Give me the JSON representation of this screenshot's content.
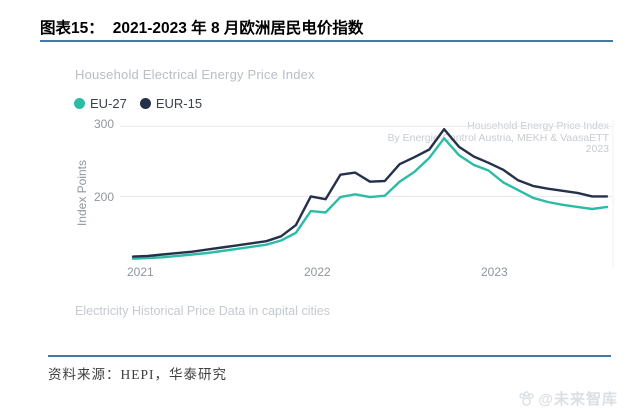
{
  "header": {
    "label": "图表15：",
    "title": "2021-2023 年 8 月欧洲居民电价指数"
  },
  "footer": {
    "source": "资料来源：HEPI，华泰研究",
    "watermark": "@未来智库"
  },
  "chart_data": {
    "type": "line",
    "title": "Household Electrical Energy Price Index",
    "ylabel": "Index Points",
    "xlabel": "",
    "y_ticks": [
      "300",
      "200"
    ],
    "ylim": [
      105,
      310
    ],
    "x_tick_labels": [
      "2021",
      "2022",
      "2023"
    ],
    "grid": "horizontal",
    "legend_position": "top-left",
    "annotation": [
      "Household Energy Price Index",
      "By Energie-Control Austria, MEKH & VaasaETT",
      "2023"
    ],
    "footnote": "Electricity Historical Price Data in capital cities",
    "categories": [
      "2021-01",
      "2021-02",
      "2021-03",
      "2021-04",
      "2021-05",
      "2021-06",
      "2021-07",
      "2021-08",
      "2021-09",
      "2021-10",
      "2021-11",
      "2021-12",
      "2022-01",
      "2022-02",
      "2022-03",
      "2022-04",
      "2022-05",
      "2022-06",
      "2022-07",
      "2022-08",
      "2022-09",
      "2022-10",
      "2022-11",
      "2022-12",
      "2023-01",
      "2023-02",
      "2023-03",
      "2023-04",
      "2023-05",
      "2023-06",
      "2023-07",
      "2023-08",
      "2023-09"
    ],
    "series": [
      {
        "name": "EU-27",
        "color": "#2cbca6",
        "values": [
          111,
          112,
          113,
          115,
          117,
          119,
          122,
          125,
          128,
          131,
          137,
          148,
          179,
          177,
          199,
          203,
          199,
          201,
          221,
          235,
          255,
          283,
          259,
          245,
          237,
          220,
          209,
          198,
          192,
          188,
          185,
          182,
          185
        ]
      },
      {
        "name": "EUR-15",
        "color": "#25304a",
        "values": [
          114,
          115,
          117,
          119,
          121,
          124,
          127,
          130,
          133,
          136,
          143,
          159,
          200,
          196,
          231,
          234,
          221,
          222,
          246,
          256,
          267,
          296,
          271,
          257,
          248,
          238,
          223,
          215,
          211,
          208,
          205,
          200,
          200
        ]
      }
    ]
  }
}
